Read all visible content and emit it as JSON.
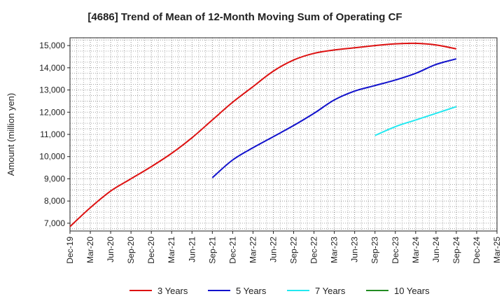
{
  "chart_data": {
    "type": "line",
    "title": "[4686]  Trend of Mean of 12-Month Moving Sum of Operating CF",
    "xlabel": "",
    "ylabel": "Amount (million yen)",
    "ylim": [
      6650,
      15350
    ],
    "yticks": [
      7000,
      8000,
      9000,
      10000,
      11000,
      12000,
      13000,
      14000,
      15000
    ],
    "ytick_labels": [
      "7,000",
      "8,000",
      "9,000",
      "10,000",
      "11,000",
      "12,000",
      "13,000",
      "14,000",
      "15,000"
    ],
    "categories": [
      "Dec-19",
      "Mar-20",
      "Jun-20",
      "Sep-20",
      "Dec-20",
      "Mar-21",
      "Jun-21",
      "Sep-21",
      "Dec-21",
      "Mar-22",
      "Jun-22",
      "Sep-22",
      "Dec-22",
      "Mar-23",
      "Jun-23",
      "Sep-23",
      "Dec-23",
      "Mar-24",
      "Jun-24",
      "Sep-24",
      "Dec-24",
      "Mar-25"
    ],
    "grid": true,
    "legend_position": "bottom",
    "series": [
      {
        "name": "3 Years",
        "color": "#dd1111",
        "values": [
          6850,
          7700,
          8450,
          9000,
          9550,
          10150,
          10850,
          11650,
          12450,
          13150,
          13850,
          14350,
          14650,
          14800,
          14900,
          15000,
          15080,
          15100,
          15030,
          14850,
          null,
          null
        ]
      },
      {
        "name": "5 Years",
        "color": "#1111cc",
        "values": [
          null,
          null,
          null,
          null,
          null,
          null,
          null,
          9050,
          9850,
          10400,
          10900,
          11400,
          11950,
          12550,
          12950,
          13200,
          13450,
          13750,
          14150,
          14400,
          null,
          null
        ]
      },
      {
        "name": "7 Years",
        "color": "#22e8f0",
        "values": [
          null,
          null,
          null,
          null,
          null,
          null,
          null,
          null,
          null,
          null,
          null,
          null,
          null,
          null,
          null,
          10950,
          11350,
          11650,
          11950,
          12250,
          null,
          null
        ]
      },
      {
        "name": "10 Years",
        "color": "#228b22",
        "values": [
          null,
          null,
          null,
          null,
          null,
          null,
          null,
          null,
          null,
          null,
          null,
          null,
          null,
          null,
          null,
          null,
          null,
          null,
          null,
          null,
          null,
          null
        ]
      }
    ]
  }
}
